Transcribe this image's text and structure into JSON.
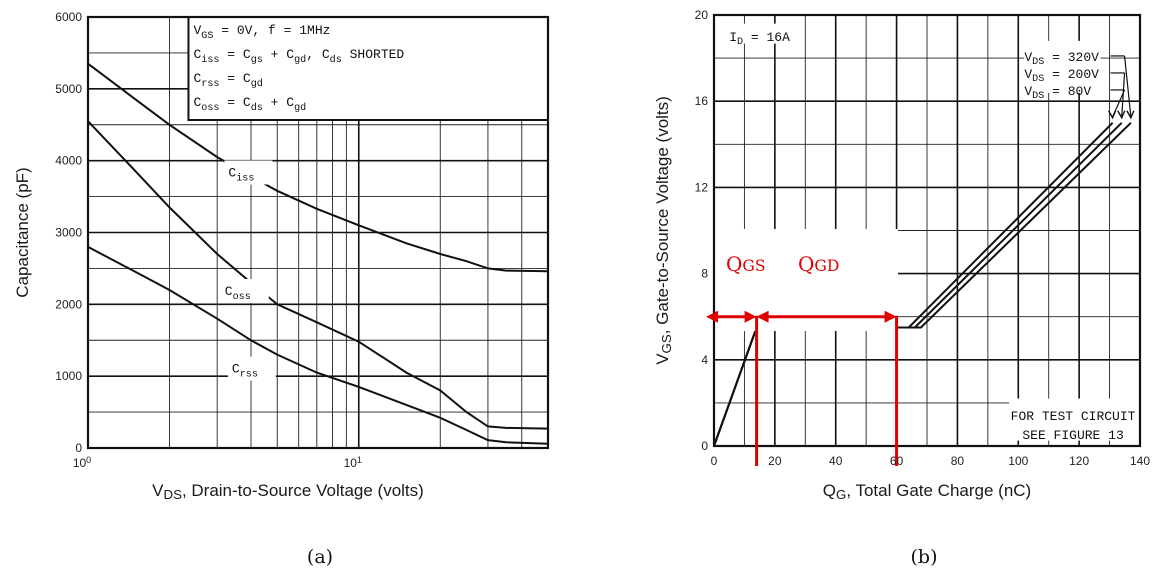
{
  "chart_data": [
    {
      "type": "line",
      "panel_label": "(a)",
      "xlabel_main": "V",
      "xlabel_sub": "DS",
      "xlabel_rest": ", Drain-to-Source Voltage (volts)",
      "ylabel": "Capacitance (pF)",
      "xscale": "log",
      "xlim": [
        1,
        50
      ],
      "ylim": [
        0,
        6000
      ],
      "x_tick_labels": [
        {
          "base": "10",
          "exp": "0",
          "value": 1
        },
        {
          "base": "10",
          "exp": "1",
          "value": 10
        }
      ],
      "y_ticks": [
        0,
        1000,
        2000,
        3000,
        4000,
        5000,
        6000
      ],
      "legend_lines": [
        [
          "V",
          "GS",
          " = 0V,  f = 1MHz"
        ],
        [
          "C",
          "iss",
          " = C",
          "gs",
          " + C",
          "gd",
          ",  C",
          "ds",
          " SHORTED"
        ],
        [
          "C",
          "rss",
          " = C",
          "gd"
        ],
        [
          "C",
          "oss",
          " = C",
          "ds",
          " + C",
          "gd"
        ]
      ],
      "series": [
        {
          "label_main": "C",
          "label_sub": "iss",
          "x": [
            1,
            1.5,
            2,
            3,
            4,
            5,
            7,
            10,
            15,
            20,
            25,
            30,
            35,
            50
          ],
          "y": [
            5350,
            4850,
            4500,
            4050,
            3780,
            3580,
            3330,
            3100,
            2850,
            2700,
            2600,
            2500,
            2470,
            2460
          ]
        },
        {
          "label_main": "C",
          "label_sub": "oss",
          "x": [
            1,
            1.5,
            2,
            3,
            4,
            5,
            7,
            10,
            15,
            20,
            25,
            30,
            35,
            50
          ],
          "y": [
            4550,
            3850,
            3350,
            2700,
            2300,
            2000,
            1750,
            1480,
            1050,
            800,
            500,
            300,
            280,
            270
          ]
        },
        {
          "label_main": "C",
          "label_sub": "rss",
          "x": [
            1,
            1.5,
            2,
            3,
            4,
            5,
            7,
            10,
            15,
            20,
            25,
            30,
            35,
            50
          ],
          "y": [
            2800,
            2450,
            2200,
            1800,
            1500,
            1300,
            1050,
            850,
            600,
            420,
            250,
            110,
            80,
            60
          ]
        }
      ]
    },
    {
      "type": "line",
      "panel_label": "(b)",
      "xlabel_main": "Q",
      "xlabel_sub": "G",
      "xlabel_rest": ", Total Gate Charge (nC)",
      "ylabel_main": "V",
      "ylabel_sub": "GS",
      "ylabel_rest": ", Gate-to-Source Voltage (volts)",
      "xlim": [
        0,
        140
      ],
      "ylim": [
        0,
        20
      ],
      "x_ticks": [
        0,
        20,
        40,
        60,
        80,
        100,
        120,
        140
      ],
      "y_ticks": [
        0,
        4,
        8,
        12,
        16,
        20
      ],
      "id_label": [
        "I",
        "D",
        " = 16A"
      ],
      "test_note": [
        "FOR TEST CIRCUIT",
        "SEE FIGURE 13"
      ],
      "series": [
        {
          "name_main": "V",
          "name_sub": "DS",
          "name_rest": " = 320V",
          "x": [
            0,
            14,
            68,
            137
          ],
          "y": [
            0,
            5.5,
            5.5,
            15
          ]
        },
        {
          "name_main": "V",
          "name_sub": "DS",
          "name_rest": " = 200V",
          "x": [
            0,
            14,
            66,
            134
          ],
          "y": [
            0,
            5.5,
            5.5,
            15
          ]
        },
        {
          "name_main": "V",
          "name_sub": "DS",
          "name_rest": " = 80V",
          "x": [
            0,
            14,
            64,
            131
          ],
          "y": [
            0,
            5.5,
            5.5,
            15
          ]
        }
      ],
      "annotations": {
        "qgs": {
          "main": "Q",
          "sub": "GS",
          "x_range": [
            0,
            14
          ],
          "y": 6
        },
        "qgd": {
          "main": "Q",
          "sub": "GD",
          "x_range": [
            14,
            60
          ],
          "y": 6
        },
        "marker_x": [
          14,
          60
        ]
      },
      "colors": {
        "annotation": "#e10000"
      }
    }
  ]
}
